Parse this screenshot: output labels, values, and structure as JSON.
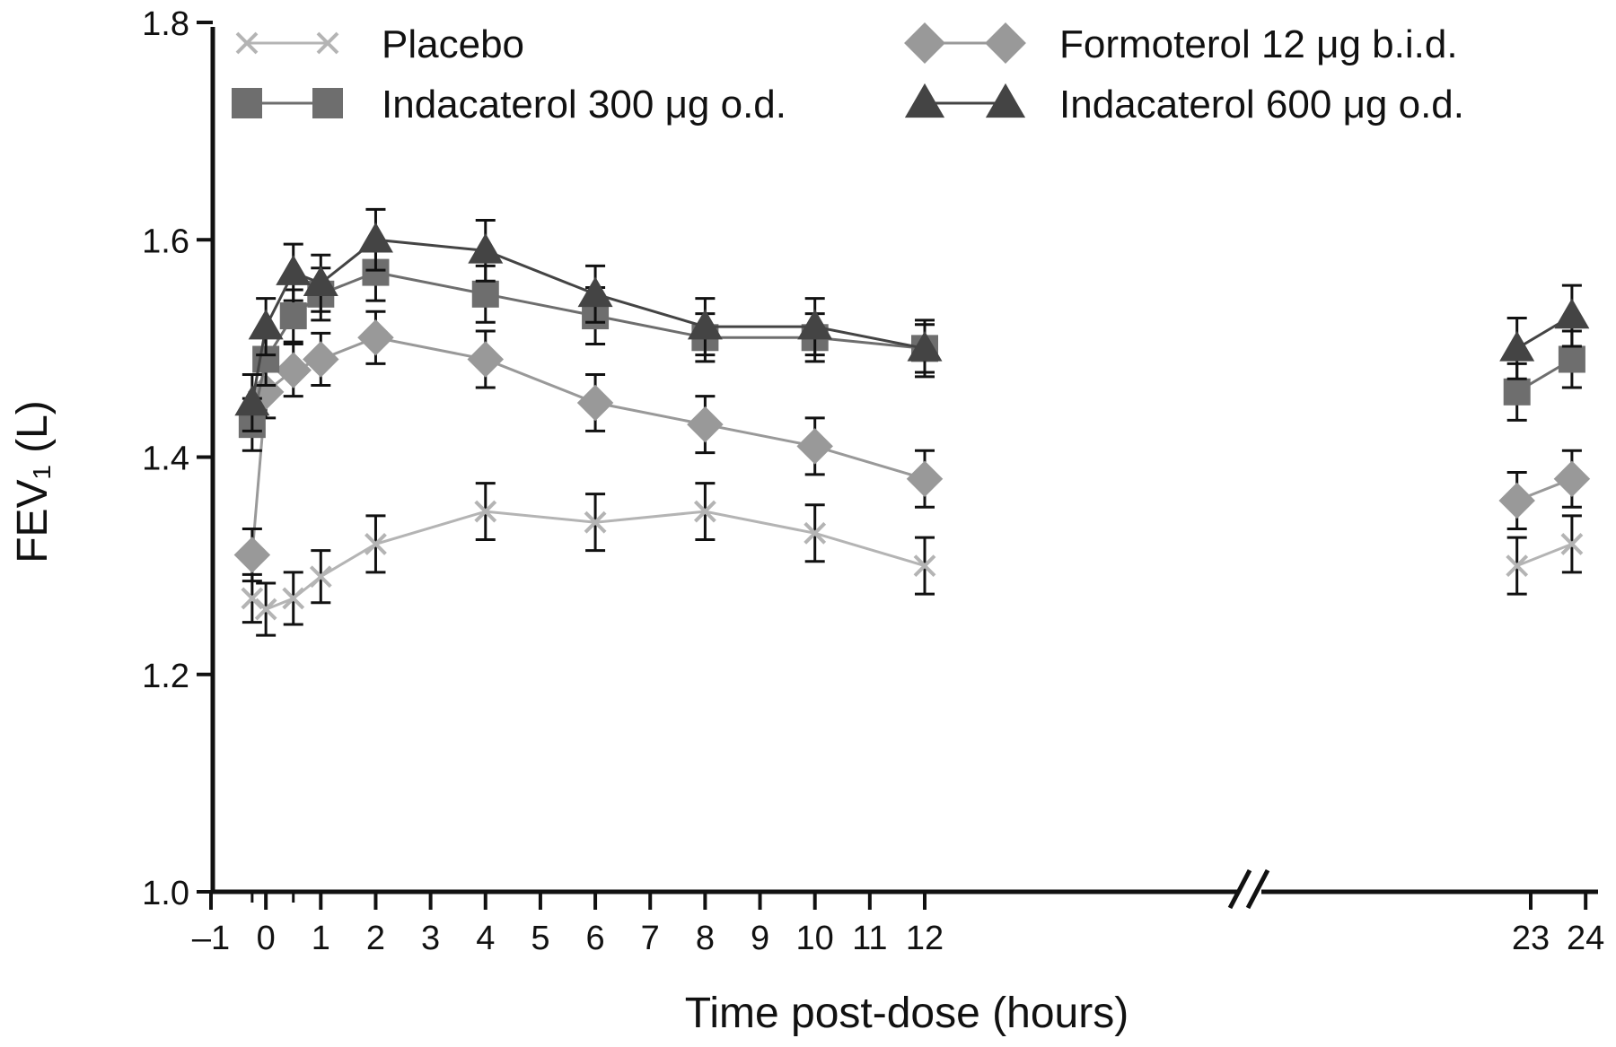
{
  "chart_data": {
    "type": "line",
    "title": "",
    "xlabel": "Time post-dose (hours)",
    "ylabel": "FEV₁ (L)",
    "ylim": [
      1.0,
      1.8
    ],
    "y_ticks": [
      "1.0",
      "1.2",
      "1.4",
      "1.6",
      "1.8"
    ],
    "x_tick_labels": [
      "–1",
      "0",
      "1",
      "2",
      "3",
      "4",
      "5",
      "6",
      "7",
      "8",
      "9",
      "10",
      "11",
      "12",
      "23",
      "24"
    ],
    "x_axis_break": "between 12 and 23",
    "grid": false,
    "legend_position": "top",
    "series": [
      {
        "name": "Placebo",
        "marker": "x",
        "color": "#b4b4b4",
        "points": [
          {
            "x": -0.25,
            "y": 1.27,
            "err": 0.022
          },
          {
            "x": 0.0,
            "y": 1.26,
            "err": 0.024
          },
          {
            "x": 0.5,
            "y": 1.27,
            "err": 0.024
          },
          {
            "x": 1.0,
            "y": 1.29,
            "err": 0.024
          },
          {
            "x": 2.0,
            "y": 1.32,
            "err": 0.026
          },
          {
            "x": 4.0,
            "y": 1.35,
            "err": 0.026
          },
          {
            "x": 6.0,
            "y": 1.34,
            "err": 0.026
          },
          {
            "x": 8.0,
            "y": 1.35,
            "err": 0.026
          },
          {
            "x": 10.0,
            "y": 1.33,
            "err": 0.026
          },
          {
            "x": 12.0,
            "y": 1.3,
            "err": 0.026
          },
          {
            "x": 22.75,
            "y": 1.3,
            "err": 0.026
          },
          {
            "x": 23.75,
            "y": 1.32,
            "err": 0.026
          }
        ]
      },
      {
        "name": "Formoterol 12 μg b.i.d.",
        "marker": "diamond",
        "color": "#999999",
        "points": [
          {
            "x": -0.25,
            "y": 1.31,
            "err": 0.024
          },
          {
            "x": 0.0,
            "y": 1.46,
            "err": 0.024
          },
          {
            "x": 0.5,
            "y": 1.48,
            "err": 0.024
          },
          {
            "x": 1.0,
            "y": 1.49,
            "err": 0.024
          },
          {
            "x": 2.0,
            "y": 1.51,
            "err": 0.024
          },
          {
            "x": 4.0,
            "y": 1.49,
            "err": 0.026
          },
          {
            "x": 6.0,
            "y": 1.45,
            "err": 0.026
          },
          {
            "x": 8.0,
            "y": 1.43,
            "err": 0.026
          },
          {
            "x": 10.0,
            "y": 1.41,
            "err": 0.026
          },
          {
            "x": 12.0,
            "y": 1.38,
            "err": 0.026
          },
          {
            "x": 22.75,
            "y": 1.36,
            "err": 0.026
          },
          {
            "x": 23.75,
            "y": 1.38,
            "err": 0.026
          }
        ]
      },
      {
        "name": "Indacaterol 300 μg o.d.",
        "marker": "square",
        "color": "#6e6e6e",
        "points": [
          {
            "x": -0.25,
            "y": 1.43,
            "err": 0.024
          },
          {
            "x": 0.0,
            "y": 1.49,
            "err": 0.024
          },
          {
            "x": 0.5,
            "y": 1.53,
            "err": 0.024
          },
          {
            "x": 1.0,
            "y": 1.55,
            "err": 0.024
          },
          {
            "x": 2.0,
            "y": 1.57,
            "err": 0.026
          },
          {
            "x": 4.0,
            "y": 1.55,
            "err": 0.026
          },
          {
            "x": 6.0,
            "y": 1.53,
            "err": 0.026
          },
          {
            "x": 8.0,
            "y": 1.51,
            "err": 0.022
          },
          {
            "x": 10.0,
            "y": 1.51,
            "err": 0.022
          },
          {
            "x": 12.0,
            "y": 1.5,
            "err": 0.022
          },
          {
            "x": 22.75,
            "y": 1.46,
            "err": 0.026
          },
          {
            "x": 23.75,
            "y": 1.49,
            "err": 0.026
          }
        ]
      },
      {
        "name": "Indacaterol 600 μg o.d.",
        "marker": "triangle",
        "color": "#444444",
        "points": [
          {
            "x": -0.25,
            "y": 1.45,
            "err": 0.026
          },
          {
            "x": 0.0,
            "y": 1.52,
            "err": 0.026
          },
          {
            "x": 0.5,
            "y": 1.57,
            "err": 0.026
          },
          {
            "x": 1.0,
            "y": 1.56,
            "err": 0.026
          },
          {
            "x": 2.0,
            "y": 1.6,
            "err": 0.028
          },
          {
            "x": 4.0,
            "y": 1.59,
            "err": 0.028
          },
          {
            "x": 6.0,
            "y": 1.55,
            "err": 0.026
          },
          {
            "x": 8.0,
            "y": 1.52,
            "err": 0.026
          },
          {
            "x": 10.0,
            "y": 1.52,
            "err": 0.026
          },
          {
            "x": 12.0,
            "y": 1.5,
            "err": 0.026
          },
          {
            "x": 22.75,
            "y": 1.5,
            "err": 0.028
          },
          {
            "x": 23.75,
            "y": 1.53,
            "err": 0.028
          }
        ]
      }
    ]
  }
}
